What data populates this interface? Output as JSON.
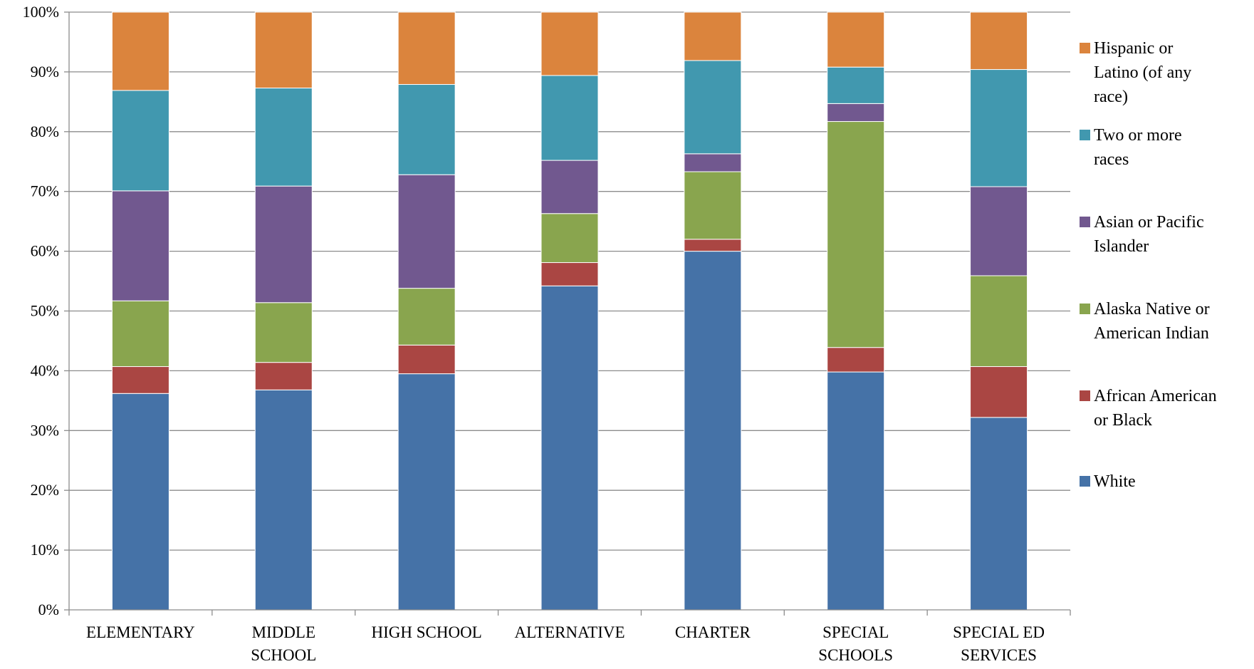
{
  "chart_data": {
    "type": "bar",
    "stacked": true,
    "percent": true,
    "categories": [
      [
        "ELEMENTARY"
      ],
      [
        "MIDDLE",
        "SCHOOL"
      ],
      [
        "HIGH SCHOOL"
      ],
      [
        "ALTERNATIVE"
      ],
      [
        "CHARTER"
      ],
      [
        "SPECIAL",
        "SCHOOLS"
      ],
      [
        "SPECIAL ED",
        "SERVICES"
      ]
    ],
    "series": [
      {
        "name": "White",
        "color": "#4572A7",
        "values": [
          36.2,
          36.8,
          39.5,
          54.2,
          60.0,
          39.8,
          32.2
        ]
      },
      {
        "name": "African American or Black",
        "color": "#AA4643",
        "values": [
          4.5,
          4.6,
          4.8,
          3.9,
          2.0,
          4.1,
          8.5
        ]
      },
      {
        "name": "Alaska Native or American Indian",
        "color": "#89A54E",
        "values": [
          11.0,
          10.0,
          9.5,
          8.2,
          11.3,
          37.8,
          15.2
        ]
      },
      {
        "name": "Asian or Pacific Islander",
        "color": "#71588F",
        "values": [
          18.4,
          19.5,
          19.0,
          8.9,
          3.0,
          3.0,
          14.9
        ]
      },
      {
        "name": "Two or more races",
        "color": "#4198AF",
        "values": [
          16.8,
          16.4,
          15.1,
          14.2,
          15.6,
          6.1,
          19.6
        ]
      },
      {
        "name": "Hispanic or Latino (of any race)",
        "color": "#DB843D",
        "values": [
          13.1,
          12.7,
          12.1,
          10.6,
          8.1,
          9.2,
          9.6
        ]
      }
    ],
    "y_ticks": [
      "0%",
      "10%",
      "20%",
      "30%",
      "40%",
      "50%",
      "60%",
      "70%",
      "80%",
      "90%",
      "100%"
    ],
    "ylim": [
      0,
      100
    ],
    "grid": true,
    "legend": {
      "placement": "right",
      "order": [
        "Hispanic or Latino (of any race)",
        "Two or more races",
        "Asian or Pacific Islander",
        "Alaska Native or American Indian",
        "African American or Black",
        "White"
      ],
      "lines": [
        [
          "Hispanic or",
          "Latino (of any",
          "race)"
        ],
        [
          "Two or more",
          "races"
        ],
        [
          "Asian or Pacific",
          "Islander"
        ],
        [
          "Alaska Native or",
          "American Indian"
        ],
        [
          "African American",
          "or Black"
        ],
        [
          "White"
        ]
      ]
    },
    "title": "",
    "xlabel": "",
    "ylabel": ""
  }
}
